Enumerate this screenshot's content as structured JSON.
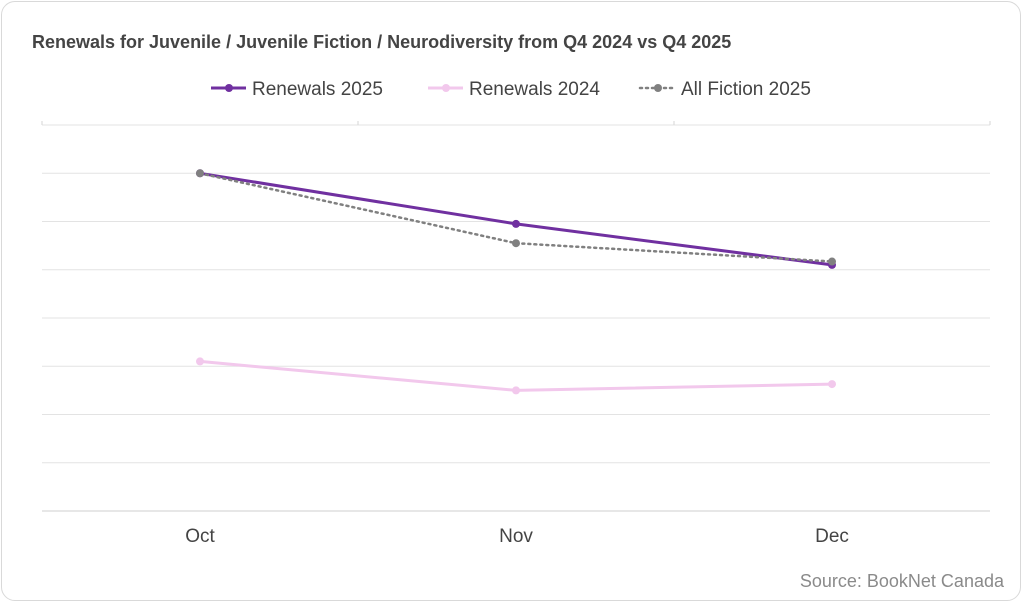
{
  "title": "Renewals for Juvenile / Juvenile Fiction / Neurodiversity from Q4 2024 vs Q4 2025",
  "source": "Source: BookNet Canada",
  "chart_data": {
    "type": "line",
    "title": "Renewals for Juvenile / Juvenile Fiction / Neurodiversity from Q4 2024 vs Q4 2025",
    "categories": [
      "Oct",
      "Nov",
      "Dec"
    ],
    "ylim": [
      0,
      8
    ],
    "grid": true,
    "legend": "top",
    "series": [
      {
        "name": "Renewals 2025",
        "values": [
          7.0,
          5.95,
          5.1
        ],
        "color": "#7030a0",
        "style": "solid"
      },
      {
        "name": "Renewals 2024",
        "values": [
          3.1,
          2.5,
          2.63
        ],
        "color": "#f2c8ec",
        "style": "solid"
      },
      {
        "name": "All Fiction 2025",
        "values": [
          7.0,
          5.55,
          5.17
        ],
        "color": "#808080",
        "style": "dotted"
      }
    ]
  }
}
